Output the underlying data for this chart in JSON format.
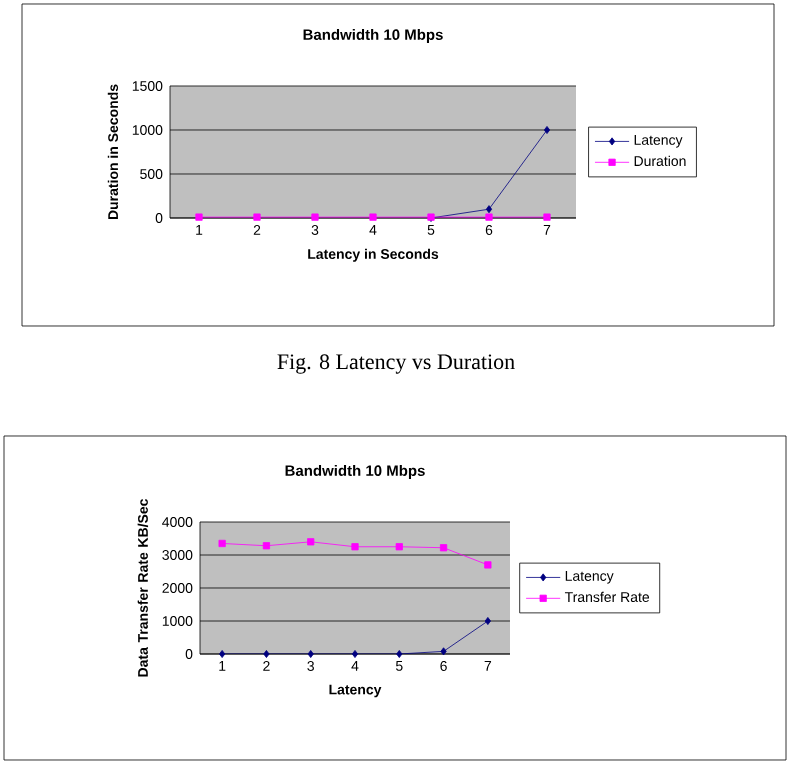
{
  "chart_data": [
    {
      "type": "line",
      "title": "Bandwidth 10 Mbps",
      "xlabel": "Latency in Seconds",
      "ylabel": "Duration in Seconds",
      "categories": [
        "1",
        "2",
        "3",
        "4",
        "5",
        "6",
        "7"
      ],
      "ylim": [
        0,
        1500
      ],
      "yticks": [
        0,
        500,
        1000,
        1500
      ],
      "grid": "y",
      "legend": "right",
      "annotations": [
        "Fig. 8 Latency vs Duration"
      ],
      "series": [
        {
          "name": "Latency",
          "color": "#000080",
          "marker": "diamond",
          "values": [
            null,
            null,
            null,
            null,
            0,
            100,
            1000
          ]
        },
        {
          "name": "Duration",
          "color": "#ff00ff",
          "marker": "square",
          "values": [
            10,
            10,
            10,
            10,
            10,
            10,
            10
          ]
        }
      ]
    },
    {
      "type": "line",
      "title": "Bandwidth 10 Mbps",
      "xlabel": "Latency",
      "ylabel": "Data Transfer Rate KB/Sec",
      "categories": [
        "1",
        "2",
        "3",
        "4",
        "5",
        "6",
        "7"
      ],
      "ylim": [
        0,
        4000
      ],
      "yticks": [
        0,
        1000,
        2000,
        3000,
        4000
      ],
      "grid": "y",
      "legend": "right",
      "series": [
        {
          "name": "Latency",
          "color": "#000080",
          "marker": "diamond",
          "values": [
            0,
            0,
            0,
            0,
            0,
            80,
            1000
          ]
        },
        {
          "name": "Transfer Rate",
          "color": "#ff00ff",
          "marker": "square",
          "values": [
            3350,
            3280,
            3400,
            3250,
            3250,
            3220,
            2700
          ]
        }
      ]
    }
  ]
}
